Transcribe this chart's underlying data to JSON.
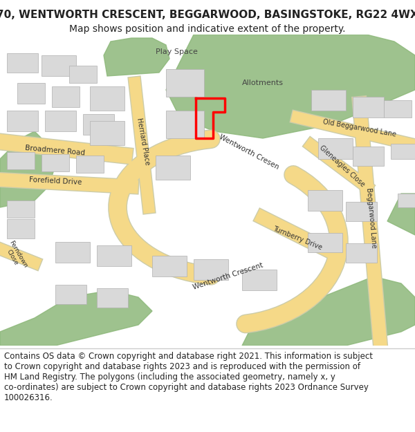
{
  "title_line1": "70, WENTWORTH CRESCENT, BEGGARWOOD, BASINGSTOKE, RG22 4WX",
  "title_line2": "Map shows position and indicative extent of the property.",
  "footer_wrapped": "Contains OS data © Crown copyright and database right 2021. This information is subject\nto Crown copyright and database rights 2023 and is reproduced with the permission of\nHM Land Registry. The polygons (including the associated geometry, namely x, y\nco-ordinates) are subject to Crown copyright and database rights 2023 Ordnance Survey\n100026316.",
  "title_fontsize": 11,
  "subtitle_fontsize": 10,
  "footer_fontsize": 8.5,
  "map_bg": "#f0efe8",
  "green_color": "#8db87a",
  "building_color": "#d9d9d9",
  "building_edge": "#b0b0b0",
  "road_color": "#f5d988",
  "road_outline_c": "#ccccaa",
  "red_outline_color": "#ff0000",
  "text_color": "#222222"
}
